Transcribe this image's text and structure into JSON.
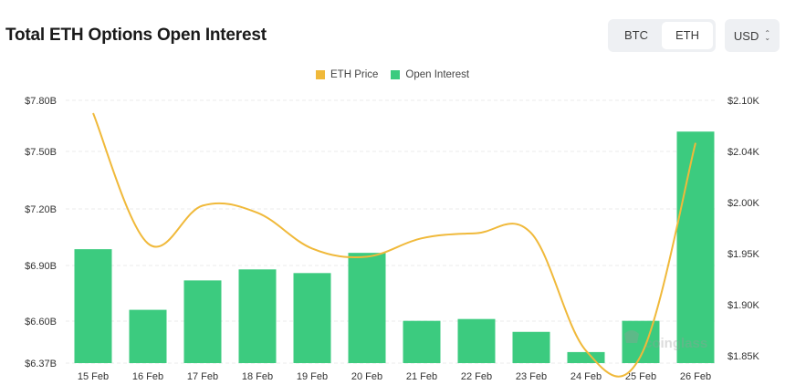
{
  "header": {
    "title": "Total ETH Options Open Interest",
    "asset_toggle": [
      {
        "label": "BTC",
        "active": false
      },
      {
        "label": "ETH",
        "active": true
      }
    ],
    "currency_select": {
      "value": "USD",
      "icon": "chevron-up-down-icon"
    }
  },
  "legend": [
    {
      "label": "ETH Price",
      "color": "#F0B93A"
    },
    {
      "label": "Open Interest",
      "color": "#3CCB7F"
    }
  ],
  "watermark": "coinglass",
  "colors": {
    "bar": "#3CCB7F",
    "line": "#F0B93A",
    "grid": "#ebebeb"
  },
  "chart_data": {
    "type": "bar",
    "title": "Total ETH Options Open Interest",
    "xlabel": "",
    "ylabel": "",
    "categories": [
      "15 Feb",
      "16 Feb",
      "17 Feb",
      "18 Feb",
      "19 Feb",
      "20 Feb",
      "21 Feb",
      "22 Feb",
      "23 Feb",
      "24 Feb",
      "25 Feb",
      "26 Feb"
    ],
    "series": [
      {
        "name": "Open Interest",
        "type": "bar",
        "axis": "left",
        "unit": "USD billions",
        "values": [
          6.99,
          6.66,
          6.82,
          6.88,
          6.86,
          6.97,
          6.6,
          6.61,
          6.54,
          6.43,
          6.6,
          7.63
        ]
      },
      {
        "name": "ETH Price",
        "type": "line",
        "axis": "right",
        "unit": "USD thousands",
        "values": [
          2.085,
          1.96,
          1.997,
          1.99,
          1.955,
          1.947,
          1.965,
          1.97,
          1.97,
          1.855,
          1.85,
          2.05
        ]
      }
    ],
    "y_left": {
      "ticks": [
        "$7.80B",
        "$7.50B",
        "$7.20B",
        "$6.90B",
        "$6.60B",
        "$6.37B"
      ],
      "range": [
        6.37,
        7.8
      ]
    },
    "y_right": {
      "ticks": [
        "$2.10K",
        "$2.04K",
        "$2.00K",
        "$1.95K",
        "$1.90K",
        "$1.85K"
      ],
      "range": [
        1.85,
        2.1
      ]
    },
    "grid": true,
    "legend_position": "top-center"
  }
}
